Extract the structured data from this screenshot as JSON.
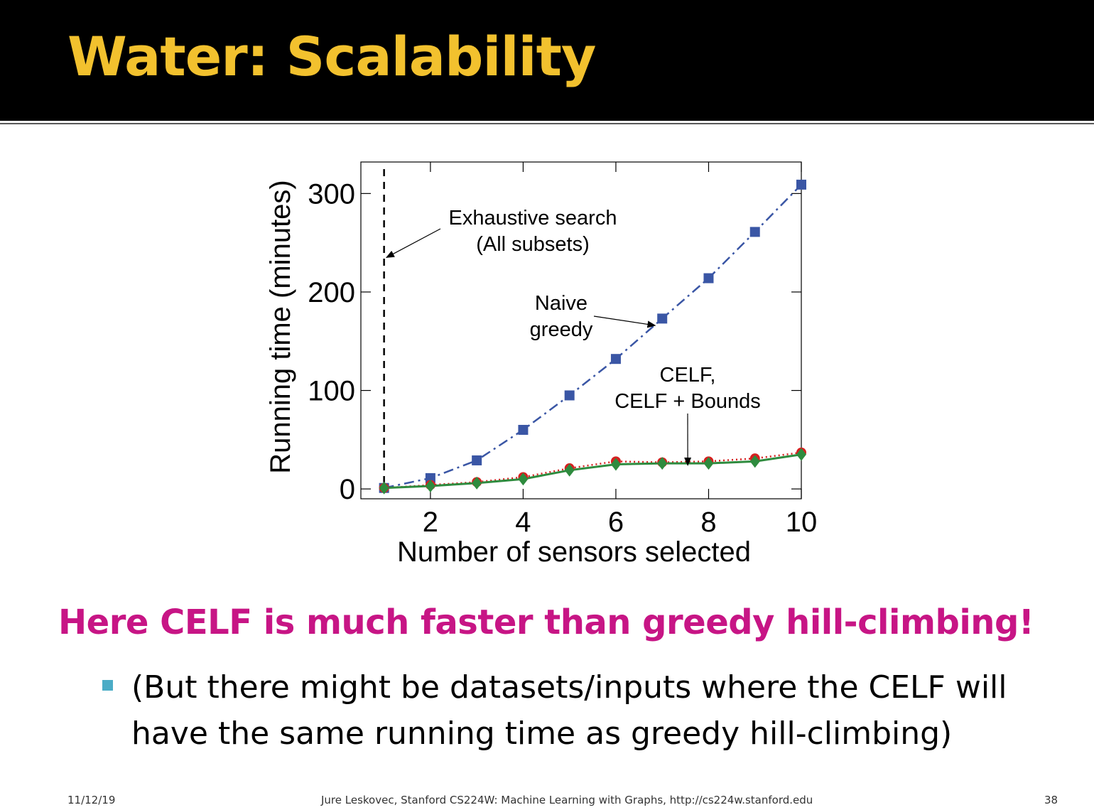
{
  "slide": {
    "title": "Water: Scalability",
    "headline": "Here CELF is much faster than greedy hill-climbing!",
    "bullet": "(But there might be datasets/inputs where the CELF will have the same running time as greedy hill-climbing)",
    "colors": {
      "title": "#f2c12e",
      "headline": "#c71585",
      "bullet_marker": "#4bacc6",
      "header_bg": "#000000"
    }
  },
  "footer": {
    "date": "11/12/19",
    "credit": "Jure Leskovec, Stanford CS224W: Machine Learning with Graphs, http://cs224w.stanford.edu",
    "page": "38"
  },
  "chart_data": {
    "type": "line",
    "xlabel": "Number of sensors selected",
    "ylabel": "Running time (minutes)",
    "xlim": [
      0.5,
      10
    ],
    "ylim": [
      -10,
      332
    ],
    "xticks": [
      2,
      4,
      6,
      8,
      10
    ],
    "yticks": [
      0,
      100,
      200,
      300
    ],
    "grid": false,
    "x": [
      1,
      2,
      3,
      4,
      5,
      6,
      7,
      8,
      9,
      10
    ],
    "series": [
      {
        "name": "Naive greedy",
        "values": [
          1,
          11,
          29,
          60,
          95,
          132,
          173,
          214,
          261,
          309
        ],
        "color": "#3a56a5",
        "marker": "square",
        "line": "dashdot"
      },
      {
        "name": "CELF",
        "values": [
          1,
          4,
          7,
          12,
          21,
          28,
          27,
          28,
          31,
          37
        ],
        "color": "#d62020",
        "marker": "circle",
        "line": "dotted"
      },
      {
        "name": "CELF + Bounds",
        "values": [
          1,
          3,
          6,
          10,
          19,
          25,
          26,
          26,
          28,
          35
        ],
        "color": "#2e8b3e",
        "marker": "diamond",
        "line": "solid"
      }
    ],
    "reference_line": {
      "x": 1,
      "style": "dashed",
      "color": "#000000"
    },
    "annotations": [
      {
        "lines": [
          "Exhaustive search",
          "(All subsets)"
        ],
        "arrow_to": [
          1.05,
          235
        ]
      },
      {
        "lines": [
          "Naive",
          "greedy"
        ],
        "arrow_to": [
          6.85,
          166
        ]
      },
      {
        "lines": [
          "CELF,",
          "CELF + Bounds"
        ],
        "arrow_to": [
          7.55,
          24
        ]
      }
    ]
  }
}
